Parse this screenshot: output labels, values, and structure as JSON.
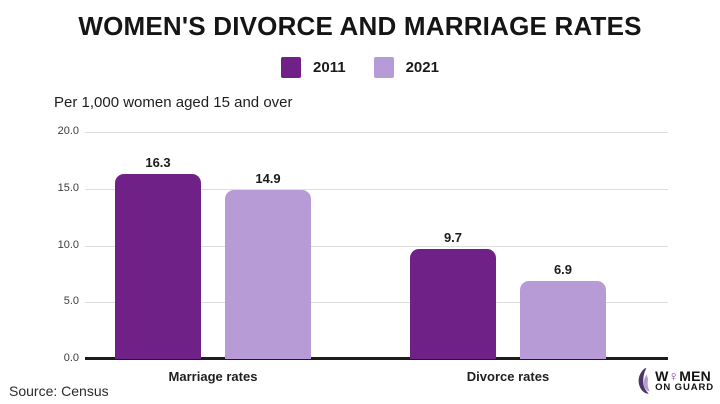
{
  "header": {
    "title": "WOMEN'S DIVORCE AND MARRIAGE RATES"
  },
  "subtitle": "Per 1,000 women aged 15 and over",
  "chart_data": {
    "type": "bar",
    "title": "WOMEN'S DIVORCE AND MARRIAGE RATES",
    "subtitle": "Per 1,000 women aged 15 and over",
    "categories": [
      "Marriage rates",
      "Divorce rates"
    ],
    "series": [
      {
        "name": "2011",
        "color": "#6f2187",
        "values": [
          16.3,
          9.7
        ]
      },
      {
        "name": "2021",
        "color": "#b79bd7",
        "values": [
          14.9,
          6.9
        ]
      }
    ],
    "xlabel": "",
    "ylabel": "",
    "ylim": [
      0,
      20
    ],
    "yticks": [
      "20.0",
      "15.0",
      "10.0",
      "5.0",
      "0.0"
    ],
    "grid": true,
    "legend_position": "top"
  },
  "footer": {
    "source": "Source: Census"
  },
  "logo": {
    "word_prefix": "W",
    "word_symbol": "♀",
    "word_suffix": "MEN",
    "line2": "ON GUARD",
    "accent_color": "#7d3f98",
    "dark_color": "#4b3563",
    "light_color": "#b79bd7"
  },
  "colors": {
    "background": "#ffffff",
    "gridline": "#dedede",
    "axis": "#1c1c1c",
    "text": "#151515"
  }
}
